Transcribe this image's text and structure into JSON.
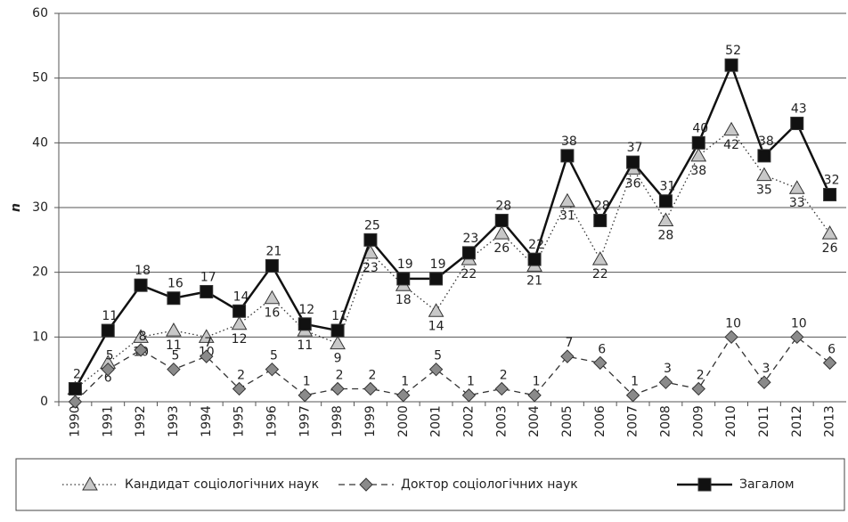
{
  "chart_data": {
    "type": "line",
    "y_label": "n",
    "categories": [
      "1990",
      "1991",
      "1992",
      "1993",
      "1994",
      "1995",
      "1996",
      "1997",
      "1998",
      "1999",
      "2000",
      "2001",
      "2002",
      "2003",
      "2004",
      "2005",
      "2006",
      "2007",
      "2008",
      "2009",
      "2010",
      "2011",
      "2012",
      "2013"
    ],
    "series": [
      {
        "name": "Кандидат соціологічних наук",
        "color": "#999999",
        "marker": "triangle",
        "line_style": "dotted",
        "values": [
          2,
          6,
          10,
          11,
          10,
          12,
          16,
          11,
          9,
          23,
          18,
          14,
          22,
          26,
          21,
          31,
          22,
          36,
          28,
          38,
          42,
          35,
          33,
          26
        ]
      },
      {
        "name": "Доктор соціологічних наук",
        "color": "#777777",
        "marker": "diamond",
        "line_style": "dashed",
        "values": [
          0,
          5,
          8,
          5,
          7,
          2,
          5,
          1,
          2,
          2,
          1,
          5,
          1,
          2,
          1,
          7,
          6,
          1,
          3,
          2,
          10,
          3,
          10,
          6
        ]
      },
      {
        "name": "Загалом",
        "color": "#111111",
        "marker": "square",
        "line_style": "solid",
        "values": [
          2,
          11,
          18,
          16,
          17,
          14,
          21,
          12,
          11,
          25,
          19,
          19,
          23,
          28,
          22,
          38,
          28,
          37,
          31,
          40,
          52,
          38,
          43,
          32
        ]
      }
    ],
    "ylim": [
      0,
      60
    ],
    "yticks": [
      0,
      10,
      20,
      30,
      40,
      50,
      60
    ],
    "grid": true,
    "legend": "bottom"
  }
}
